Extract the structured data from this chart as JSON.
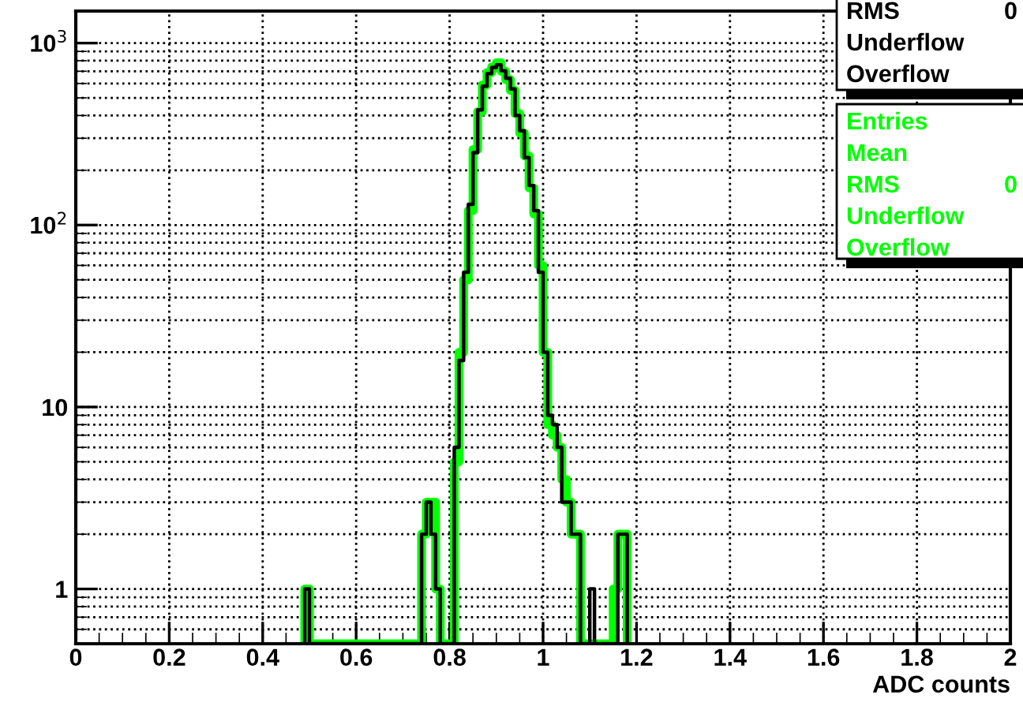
{
  "chart_data": {
    "type": "histogram",
    "xlabel": "ADC counts",
    "bins": [
      0.49,
      0.5,
      0.51,
      0.52,
      0.53,
      0.54,
      0.55,
      0.56,
      0.57,
      0.58,
      0.59,
      0.6,
      0.61,
      0.62,
      0.63,
      0.64,
      0.65,
      0.66,
      0.67,
      0.68,
      0.69,
      0.7,
      0.71,
      0.72,
      0.73,
      0.74,
      0.75,
      0.76,
      0.77,
      0.78,
      0.79,
      0.8,
      0.81,
      0.82,
      0.83,
      0.84,
      0.85,
      0.86,
      0.87,
      0.88,
      0.89,
      0.9,
      0.91,
      0.92,
      0.93,
      0.94,
      0.95,
      0.96,
      0.97,
      0.98,
      0.99,
      1.0,
      1.01,
      1.02,
      1.03,
      1.04,
      1.05,
      1.06,
      1.07,
      1.08,
      1.09,
      1.1,
      1.11,
      1.12,
      1.13,
      1.14,
      1.15,
      1.16,
      1.17,
      1.18
    ],
    "series": [
      {
        "color": "#00ff00",
        "values": [
          1,
          null,
          null,
          null,
          null,
          null,
          null,
          null,
          null,
          null,
          null,
          null,
          null,
          null,
          null,
          null,
          null,
          null,
          null,
          null,
          null,
          null,
          null,
          null,
          null,
          2,
          3,
          3,
          1,
          null,
          null,
          null,
          5,
          20,
          50,
          120,
          260,
          420,
          590,
          690,
          740,
          780,
          700,
          630,
          550,
          410,
          320,
          240,
          160,
          115,
          60,
          20,
          8,
          7,
          6,
          4,
          3,
          2,
          2,
          null,
          null,
          null,
          null,
          null,
          null,
          null,
          1,
          2,
          2
        ]
      },
      {
        "color": "#000000",
        "values": [
          1,
          null,
          null,
          null,
          null,
          null,
          null,
          null,
          null,
          null,
          null,
          null,
          null,
          null,
          null,
          null,
          null,
          null,
          null,
          null,
          null,
          null,
          null,
          null,
          null,
          2,
          3,
          2,
          1,
          null,
          null,
          null,
          6,
          18,
          55,
          130,
          250,
          430,
          580,
          680,
          735,
          760,
          705,
          640,
          560,
          400,
          330,
          235,
          165,
          120,
          55,
          20,
          9,
          8,
          6,
          3,
          3,
          2,
          2,
          null,
          null,
          1,
          null,
          null,
          null,
          null,
          null,
          2,
          2
        ]
      }
    ],
    "log": "y",
    "xlim": [
      0,
      2
    ],
    "ylim": [
      0.5,
      1500
    ],
    "xticks": [
      0,
      0.2,
      0.4,
      0.6,
      0.8,
      1,
      1.2,
      1.4,
      1.6,
      1.8,
      2
    ],
    "yticks": [
      1,
      10,
      {
        "value": 100,
        "label": "10$^{2}$"
      },
      {
        "value": 1000,
        "label": "10$^{3}$"
      }
    ],
    "grid": true,
    "annotations": [
      "RMS",
      "0",
      "Underflow",
      "Overflow",
      "Entries",
      "Mean",
      "RMS",
      "0",
      "Underflow",
      "Overflow"
    ]
  }
}
